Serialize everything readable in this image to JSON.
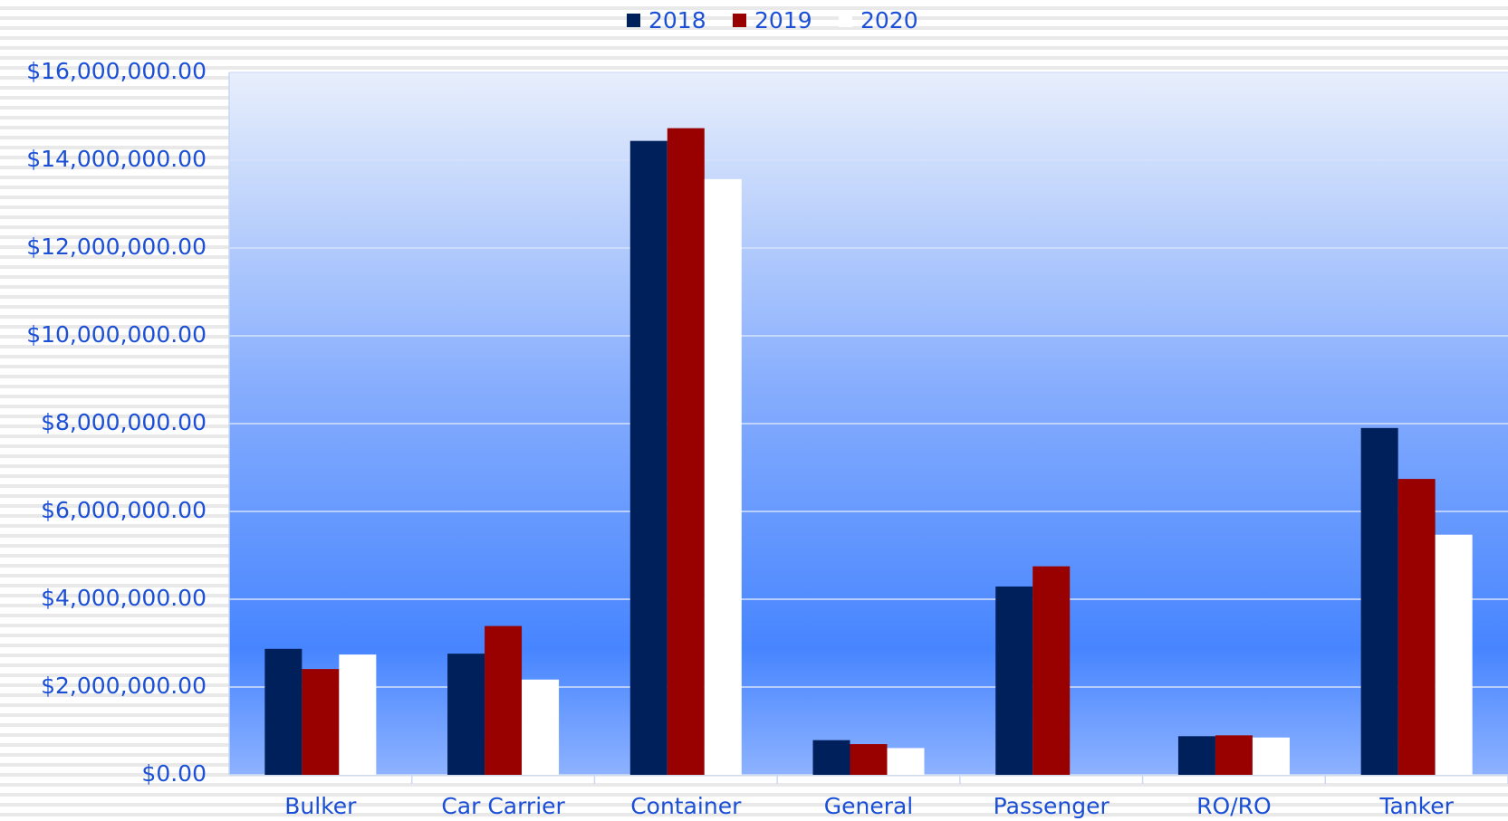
{
  "chart_data": {
    "type": "bar",
    "categories": [
      "Bulker",
      "Car Carrier",
      "Container",
      "General",
      "Passenger",
      "RO/RO",
      "Tanker"
    ],
    "series": [
      {
        "name": "2018",
        "color": "#00205b",
        "values": [
          2870000,
          2760000,
          14440000,
          790000,
          4290000,
          880000,
          7900000
        ]
      },
      {
        "name": "2019",
        "color": "#990000",
        "values": [
          2410000,
          3390000,
          14730000,
          700000,
          4750000,
          900000,
          6740000
        ]
      },
      {
        "name": "2020",
        "color": "#ffffff",
        "values": [
          2740000,
          2170000,
          13570000,
          610000,
          null,
          850000,
          5470000
        ]
      }
    ],
    "ylim": [
      0,
      16000000
    ],
    "yticks": [
      {
        "value": 0,
        "label": "$0.00"
      },
      {
        "value": 2000000,
        "label": "$2,000,000.00"
      },
      {
        "value": 4000000,
        "label": "$4,000,000.00"
      },
      {
        "value": 6000000,
        "label": "$6,000,000.00"
      },
      {
        "value": 8000000,
        "label": "$8,000,000.00"
      },
      {
        "value": 10000000,
        "label": "$10,000,000.00"
      },
      {
        "value": 12000000,
        "label": "$12,000,000.00"
      },
      {
        "value": 14000000,
        "label": "$14,000,000.00"
      },
      {
        "value": 16000000,
        "label": "$16,000,000.00"
      }
    ],
    "grid": true,
    "legend": "top"
  }
}
